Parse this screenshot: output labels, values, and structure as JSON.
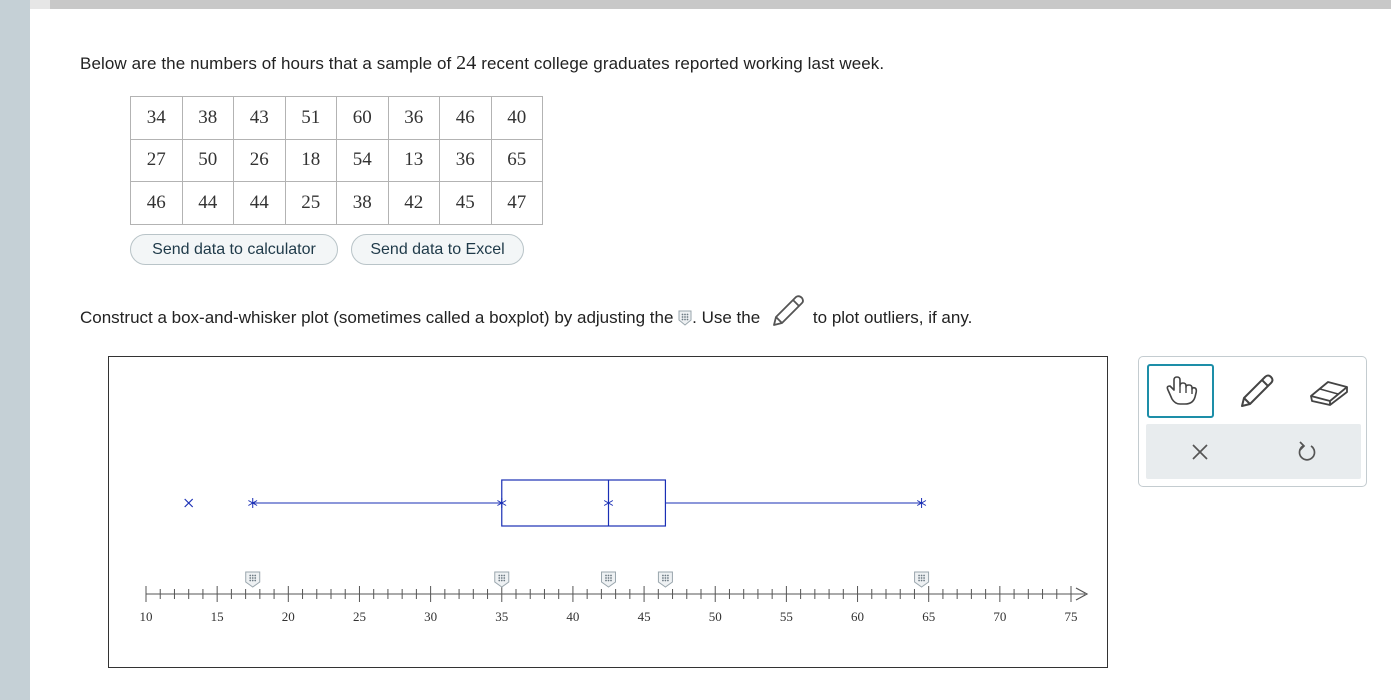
{
  "intro": {
    "before": "Below are the numbers of hours that a sample of ",
    "n": "24",
    "after": " recent college graduates reported working last week."
  },
  "table": [
    [
      "34",
      "38",
      "43",
      "51",
      "60",
      "36",
      "46",
      "40"
    ],
    [
      "27",
      "50",
      "26",
      "18",
      "54",
      "13",
      "36",
      "65"
    ],
    [
      "46",
      "44",
      "44",
      "25",
      "38",
      "42",
      "45",
      "47"
    ]
  ],
  "buttons": {
    "calculator": "Send data to calculator",
    "excel": "Send data to Excel"
  },
  "instruction": {
    "part1": "Construct a box-and-whisker plot (sometimes called a boxplot) by adjusting the",
    "part2": ". Use the",
    "part3": "to plot outliers, if any."
  },
  "boxplot": {
    "axis_min": 10,
    "axis_max": 75,
    "tick_labels": [
      "10",
      "15",
      "20",
      "25",
      "30",
      "35",
      "40",
      "45",
      "50",
      "55",
      "60",
      "65",
      "70",
      "75"
    ],
    "min": 17.5,
    "q1": 35,
    "median": 42.5,
    "q3": 46.5,
    "max": 64.5,
    "outlier_marks": [
      13
    ],
    "handles": [
      17.5,
      35,
      42.5,
      46.5,
      64.5
    ],
    "color": "#1a2fb5"
  },
  "tools": {
    "row1": [
      "hand-tool",
      "pencil-tool",
      "eraser-tool"
    ],
    "row2": [
      "clear-x",
      "undo"
    ],
    "accent": "#1d8ea8"
  }
}
